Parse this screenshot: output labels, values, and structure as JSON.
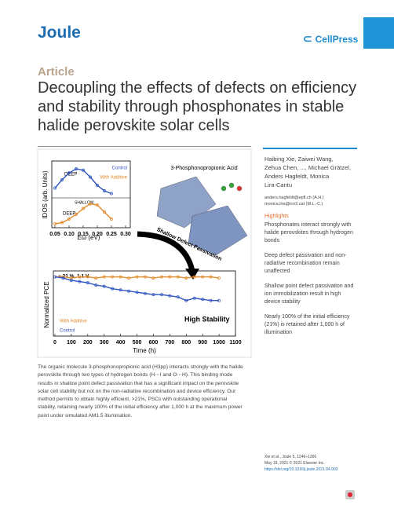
{
  "header": {
    "journal": "Joule",
    "publisher": "CellPress"
  },
  "article_type": "Article",
  "title_lines": [
    "Decoupling the effects of defects on efficiency",
    "and stability through phosphonates in stable",
    "halide perovskite solar cells"
  ],
  "figure": {
    "molecule_label": "3-Phosphonopropionic Acid",
    "arrow_label": "Shallow Defect Passivation",
    "idos_chart": {
      "type": "line",
      "ylabel": "IDOS (arb. Units)",
      "xlabel": "Eω (eV)",
      "x": [
        0.05,
        0.075,
        0.1,
        0.125,
        0.15,
        0.175,
        0.2,
        0.225,
        0.25
      ],
      "xlim": [
        0.05,
        0.3
      ],
      "xticks": [
        0.05,
        {
          "value": 0.1,
          "label": "0.10"
        },
        0.15,
        {
          "value": 0.2,
          "label": "0.20"
        },
        0.25,
        {
          "value": 0.3,
          "label": "0.30"
        }
      ],
      "ylim": [
        0,
        1
      ],
      "series": [
        {
          "name": "Control",
          "color": "#2f55c0",
          "values": [
            0.3,
            0.6,
            0.85,
            1.0,
            0.95,
            0.7,
            0.4,
            0.2,
            0.1
          ]
        },
        {
          "name": "With Additive",
          "color": "#e28a2b",
          "values": [
            0.1,
            0.15,
            0.3,
            0.5,
            0.75,
            0.95,
            0.9,
            0.6,
            0.3
          ]
        }
      ],
      "annotations": [
        "DEEP",
        "SHALLOW",
        "DEEP"
      ]
    },
    "pce_chart": {
      "type": "line",
      "ylabel": "Normalized PCE",
      "xlabel": "Time (h)",
      "annotation": "~ 21 %, 1.1 V",
      "stability_label": "High Stability",
      "x": [
        0,
        50,
        100,
        150,
        200,
        250,
        300,
        350,
        400,
        450,
        500,
        550,
        600,
        650,
        700,
        750,
        800,
        850,
        900,
        950,
        1000
      ],
      "xlim": [
        0,
        1100
      ],
      "xticks": [
        0,
        100,
        200,
        300,
        400,
        500,
        600,
        700,
        800,
        900,
        1000,
        1100
      ],
      "ylim": [
        0.5,
        1.05
      ],
      "series": [
        {
          "name": "With Additive",
          "color": "#e28a2b",
          "values": [
            1.0,
            1.0,
            0.99,
            1.0,
            1.0,
            0.99,
            1.0,
            1.0,
            1.0,
            0.99,
            1.0,
            1.0,
            0.99,
            1.0,
            1.0,
            1.0,
            0.99,
            1.0,
            1.0,
            1.0,
            0.99
          ]
        },
        {
          "name": "Control",
          "color": "#2f55c0",
          "values": [
            1.0,
            0.99,
            0.97,
            0.96,
            0.95,
            0.93,
            0.92,
            0.9,
            0.89,
            0.88,
            0.87,
            0.86,
            0.85,
            0.85,
            0.84,
            0.83,
            0.8,
            0.82,
            0.81,
            0.8,
            0.8
          ]
        }
      ]
    }
  },
  "authors": [
    "Haibing Xie, Zaiwei Wang,",
    "Zehua Chen, ..., Michael Grätzel,",
    "Anders Hagfeldt, Monica",
    "Lira-Cantu"
  ],
  "emails": [
    "anders.hagfeldt@epfl.ch (A.H.)",
    "monica.lira@icn2.cat (M.L.-C.)"
  ],
  "highlights": {
    "heading": "Highlights",
    "items": [
      "Phosphonates interact strongly with halide perovskites through hydrogen bonds",
      "Deep defect passivation and non-radiative recombination remain unaffected",
      "Shallow point defect passivation and ion immobilization result in high device stability",
      "Nearly 100% of the initial efficiency (21%) is retained after 1,000 h of illumination"
    ]
  },
  "abstract": "The organic molecule 3-phosphonopropionic acid (H3pp) interacts strongly with the halide perovskite through two types of hydrogen bonds (H⋯I and O⋯H). This binding mode results in shallow point defect passivation that has a significant impact on the perovskite solar cell stability but not on the non-radiative recombination and device efficiency. Our method permits to obtain highly efficient, >21%, PSCs with outstanding operational stability, retaining nearly 100% of the initial efficiency after 1,000 h at the maximum power point under simulated AM1.5 illumination.",
  "citation": [
    "Xie et al., Joule 5, 1246–1266",
    "May 19, 2021 © 2021 Elsevier Inc.",
    "https://doi.org/10.1016/j.joule.2021.04.003"
  ]
}
